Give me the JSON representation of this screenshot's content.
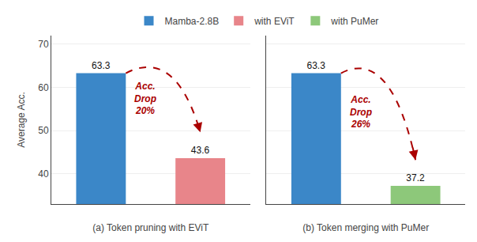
{
  "chart_data": [
    {
      "type": "bar",
      "xlabel": "(a) Token pruning with EViT",
      "ylabel": "Average Acc.",
      "series": [
        {
          "name": "Mamba-2.8B",
          "color": "#3B87C8",
          "values": [
            63.3
          ]
        },
        {
          "name": "with EViT",
          "color": "#E8858A",
          "values": [
            43.6
          ]
        }
      ],
      "ylim": [
        33,
        72
      ],
      "yticks": [
        40,
        50,
        60,
        70
      ],
      "grid": true,
      "data_labels": true,
      "tick_labels": "y",
      "legend": "top",
      "annotations": [
        {
          "text": "Acc.\nDrop\n20%",
          "color": "#AA0000"
        }
      ]
    },
    {
      "type": "bar",
      "xlabel": "(b) Token merging with PuMer",
      "series": [
        {
          "name": "Mamba-2.8B",
          "color": "#3B87C8",
          "values": [
            63.3
          ]
        },
        {
          "name": "with PuMer",
          "color": "#8DC87A",
          "values": [
            37.2
          ]
        }
      ],
      "ylim": [
        33,
        72
      ],
      "yticks": [
        40,
        50,
        60,
        70
      ],
      "grid": true,
      "data_labels": true,
      "tick_labels": false,
      "legend": "top",
      "annotations": [
        {
          "text": "Acc.\nDrop\n26%",
          "color": "#AA0000"
        }
      ]
    }
  ]
}
